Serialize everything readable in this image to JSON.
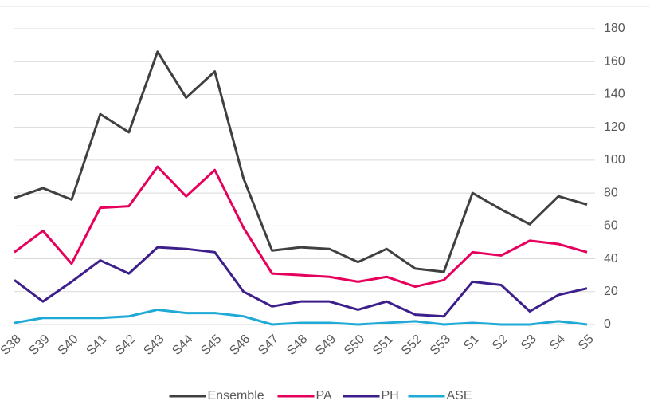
{
  "chart_data": {
    "type": "line",
    "categories": [
      "S38",
      "S39",
      "S40",
      "S41",
      "S42",
      "S43",
      "S44",
      "S45",
      "S46",
      "S47",
      "S48",
      "S49",
      "S50",
      "S51",
      "S52",
      "S53",
      "S1",
      "S2",
      "S3",
      "S4",
      "S5"
    ],
    "series": [
      {
        "name": "Ensemble",
        "color": "#404040",
        "values": [
          77,
          83,
          76,
          128,
          117,
          166,
          138,
          154,
          89,
          45,
          47,
          46,
          38,
          46,
          34,
          32,
          80,
          70,
          61,
          78,
          73
        ]
      },
      {
        "name": "PA",
        "color": "#e6005c",
        "values": [
          44,
          57,
          37,
          71,
          72,
          96,
          78,
          94,
          59,
          31,
          30,
          29,
          26,
          29,
          23,
          27,
          44,
          42,
          51,
          49,
          44
        ]
      },
      {
        "name": "PH",
        "color": "#3d1f8c",
        "values": [
          27,
          14,
          26,
          39,
          31,
          47,
          46,
          44,
          20,
          11,
          14,
          14,
          9,
          14,
          6,
          5,
          26,
          24,
          8,
          18,
          22
        ]
      },
      {
        "name": "ASE",
        "color": "#1fa9d6",
        "values": [
          1,
          4,
          4,
          4,
          5,
          9,
          7,
          7,
          5,
          0,
          1,
          1,
          0,
          1,
          2,
          0,
          1,
          0,
          0,
          2,
          0
        ]
      }
    ],
    "ylim": [
      0,
      180
    ],
    "yticks": [
      0,
      20,
      40,
      60,
      80,
      100,
      120,
      140,
      160,
      180
    ],
    "grid": true,
    "y_axis_side": "right",
    "legend": "bottom"
  }
}
